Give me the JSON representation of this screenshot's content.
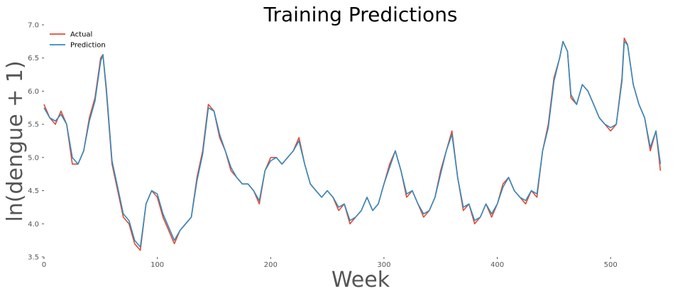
{
  "chart_data": {
    "type": "line",
    "title": "Training Predictions",
    "xlabel": "Week",
    "ylabel": "ln(dengue + 1)",
    "xlim": [
      0,
      555
    ],
    "ylim": [
      3.5,
      7.0
    ],
    "xticks": [
      0,
      100,
      200,
      300,
      400,
      500
    ],
    "yticks": [
      3.5,
      4.0,
      4.5,
      5.0,
      5.5,
      6.0,
      6.5,
      7.0
    ],
    "xtick_labels": [
      "0",
      "100",
      "200",
      "300",
      "400",
      "500"
    ],
    "ytick_labels": [
      "3.5",
      "4.0",
      "4.5",
      "5.0",
      "5.5",
      "6.0",
      "6.5",
      "7.0"
    ],
    "grid": false,
    "legend": {
      "position": "top-left",
      "entries": [
        "Actual",
        "Prediction"
      ]
    },
    "series": [
      {
        "name": "Actual",
        "color": "#E24A33",
        "x": [
          0,
          5,
          10,
          15,
          20,
          25,
          30,
          35,
          40,
          45,
          50,
          52,
          55,
          60,
          65,
          70,
          75,
          80,
          85,
          90,
          95,
          100,
          105,
          110,
          115,
          120,
          125,
          130,
          135,
          140,
          145,
          150,
          155,
          160,
          165,
          170,
          175,
          180,
          185,
          190,
          195,
          200,
          205,
          210,
          215,
          220,
          225,
          230,
          235,
          240,
          245,
          250,
          255,
          260,
          265,
          270,
          275,
          280,
          285,
          290,
          295,
          300,
          305,
          310,
          315,
          320,
          325,
          330,
          335,
          340,
          345,
          350,
          355,
          360,
          365,
          370,
          375,
          380,
          385,
          390,
          395,
          400,
          405,
          410,
          415,
          420,
          425,
          430,
          435,
          440,
          445,
          450,
          455,
          458,
          462,
          465,
          470,
          475,
          480,
          485,
          490,
          495,
          500,
          505,
          510,
          512,
          515,
          520,
          525,
          530,
          535,
          540,
          544
        ],
        "y": [
          5.8,
          5.6,
          5.5,
          5.7,
          5.5,
          4.9,
          4.9,
          5.1,
          5.6,
          5.9,
          6.5,
          6.55,
          6.0,
          4.9,
          4.5,
          4.1,
          4.0,
          3.7,
          3.6,
          4.3,
          4.5,
          4.4,
          4.1,
          3.9,
          3.7,
          3.9,
          4.0,
          4.1,
          4.7,
          5.1,
          5.8,
          5.7,
          5.3,
          5.1,
          4.8,
          4.7,
          4.6,
          4.6,
          4.5,
          4.3,
          4.8,
          5.0,
          5.0,
          4.9,
          5.0,
          5.1,
          5.3,
          4.9,
          4.6,
          4.5,
          4.4,
          4.5,
          4.4,
          4.2,
          4.3,
          4.0,
          4.1,
          4.2,
          4.4,
          4.2,
          4.3,
          4.6,
          4.9,
          5.1,
          4.8,
          4.4,
          4.5,
          4.3,
          4.1,
          4.2,
          4.4,
          4.8,
          5.1,
          5.4,
          4.7,
          4.2,
          4.3,
          4.0,
          4.1,
          4.3,
          4.1,
          4.3,
          4.6,
          4.7,
          4.5,
          4.4,
          4.3,
          4.5,
          4.4,
          5.1,
          5.5,
          6.2,
          6.5,
          6.75,
          6.6,
          5.9,
          5.8,
          6.1,
          6.0,
          5.8,
          5.6,
          5.5,
          5.4,
          5.5,
          6.2,
          6.8,
          6.7,
          6.1,
          5.8,
          5.6,
          5.1,
          5.4,
          4.8
        ]
      },
      {
        "name": "Prediction",
        "color": "#348ABD",
        "x": [
          0,
          5,
          10,
          15,
          20,
          25,
          30,
          35,
          40,
          45,
          50,
          52,
          55,
          60,
          65,
          70,
          75,
          80,
          85,
          90,
          95,
          100,
          105,
          110,
          115,
          120,
          125,
          130,
          135,
          140,
          145,
          150,
          155,
          160,
          165,
          170,
          175,
          180,
          185,
          190,
          195,
          200,
          205,
          210,
          215,
          220,
          225,
          230,
          235,
          240,
          245,
          250,
          255,
          260,
          265,
          270,
          275,
          280,
          285,
          290,
          295,
          300,
          305,
          310,
          315,
          320,
          325,
          330,
          335,
          340,
          345,
          350,
          355,
          360,
          365,
          370,
          375,
          380,
          385,
          390,
          395,
          400,
          405,
          410,
          415,
          420,
          425,
          430,
          435,
          440,
          445,
          450,
          455,
          458,
          462,
          465,
          470,
          475,
          480,
          485,
          490,
          495,
          500,
          505,
          510,
          512,
          515,
          520,
          525,
          530,
          535,
          540,
          544
        ],
        "y": [
          5.75,
          5.6,
          5.55,
          5.65,
          5.5,
          5.0,
          4.9,
          5.1,
          5.55,
          5.85,
          6.45,
          6.55,
          6.05,
          4.95,
          4.55,
          4.15,
          4.05,
          3.75,
          3.65,
          4.3,
          4.5,
          4.45,
          4.15,
          3.95,
          3.75,
          3.9,
          4.0,
          4.1,
          4.65,
          5.05,
          5.75,
          5.7,
          5.35,
          5.1,
          4.85,
          4.7,
          4.6,
          4.6,
          4.5,
          4.35,
          4.8,
          4.95,
          5.0,
          4.9,
          5.0,
          5.1,
          5.25,
          4.9,
          4.6,
          4.5,
          4.4,
          4.5,
          4.4,
          4.25,
          4.3,
          4.05,
          4.1,
          4.2,
          4.4,
          4.2,
          4.3,
          4.6,
          4.85,
          5.1,
          4.8,
          4.45,
          4.5,
          4.3,
          4.15,
          4.2,
          4.4,
          4.75,
          5.1,
          5.35,
          4.7,
          4.25,
          4.3,
          4.05,
          4.1,
          4.3,
          4.15,
          4.3,
          4.55,
          4.7,
          4.5,
          4.4,
          4.35,
          4.5,
          4.45,
          5.1,
          5.45,
          6.15,
          6.5,
          6.75,
          6.6,
          5.95,
          5.8,
          6.1,
          6.0,
          5.8,
          5.6,
          5.5,
          5.45,
          5.5,
          6.15,
          6.75,
          6.7,
          6.1,
          5.8,
          5.6,
          5.15,
          5.4,
          4.9
        ]
      }
    ]
  }
}
